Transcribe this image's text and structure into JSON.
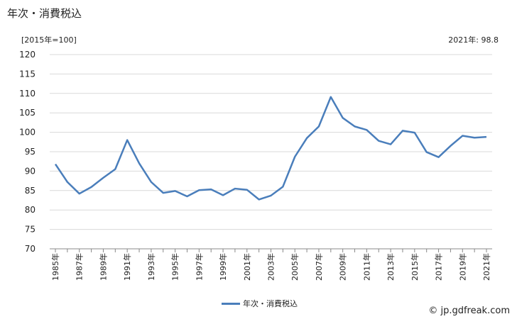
{
  "page": {
    "title": "年次・消費税込",
    "unit_label": "[2015年=100]",
    "latest_label": "2021年: 98.8",
    "credit": "© jp.gdfreak.com"
  },
  "chart_data": {
    "type": "line",
    "x": [
      1985,
      1986,
      1987,
      1988,
      1989,
      1990,
      1991,
      1992,
      1993,
      1994,
      1995,
      1996,
      1997,
      1998,
      1999,
      2000,
      2001,
      2002,
      2003,
      2004,
      2005,
      2006,
      2007,
      2008,
      2009,
      2010,
      2011,
      2012,
      2013,
      2014,
      2015,
      2016,
      2017,
      2018,
      2019,
      2020,
      2021
    ],
    "series": [
      {
        "name": "年次・消費税込",
        "color": "#4a7ebb",
        "values": [
          91.8,
          87.2,
          84.2,
          85.9,
          88.3,
          90.5,
          98.0,
          92.0,
          87.2,
          84.4,
          84.9,
          83.5,
          85.1,
          85.3,
          83.8,
          85.5,
          85.2,
          82.7,
          83.7,
          86.0,
          93.7,
          98.5,
          101.5,
          109.1,
          103.7,
          101.5,
          100.6,
          97.8,
          96.9,
          100.4,
          99.9,
          94.9,
          93.6,
          96.5,
          99.1,
          98.6,
          98.8
        ]
      }
    ],
    "ylim": [
      70,
      120
    ],
    "y_ticks": [
      70,
      75,
      80,
      85,
      90,
      95,
      100,
      105,
      110,
      115,
      120
    ],
    "x_tick_labels": [
      "1985年",
      "1987年",
      "1989年",
      "1991年",
      "1993年",
      "1995年",
      "1997年",
      "1999年",
      "2001年",
      "2003年",
      "2005年",
      "2007年",
      "2009年",
      "2011年",
      "2013年",
      "2015年",
      "2017年",
      "2019年",
      "2021年"
    ],
    "grid": "horizontal",
    "legend_position": "bottom"
  }
}
